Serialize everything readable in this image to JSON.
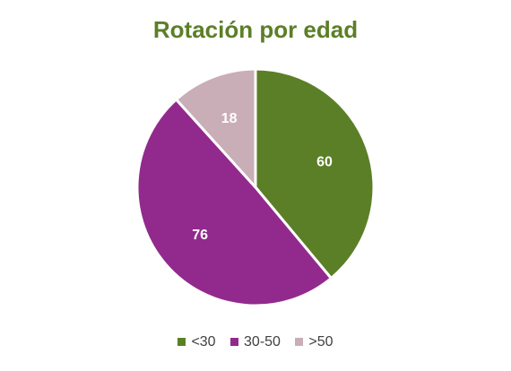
{
  "chart_data": {
    "type": "pie",
    "title": "Rotación por edad",
    "categories": [
      "<30",
      "30-50",
      ">50"
    ],
    "values": [
      60,
      76,
      18
    ],
    "data_labels": [
      "60",
      "76",
      "18"
    ],
    "colors": [
      "#5b7f26",
      "#922a8d",
      "#c9aeb7"
    ],
    "title_color": "#5b7f26",
    "label_color": "#ffffff",
    "start_angle_deg": 0,
    "direction": "clockwise",
    "legend_position": "bottom"
  }
}
